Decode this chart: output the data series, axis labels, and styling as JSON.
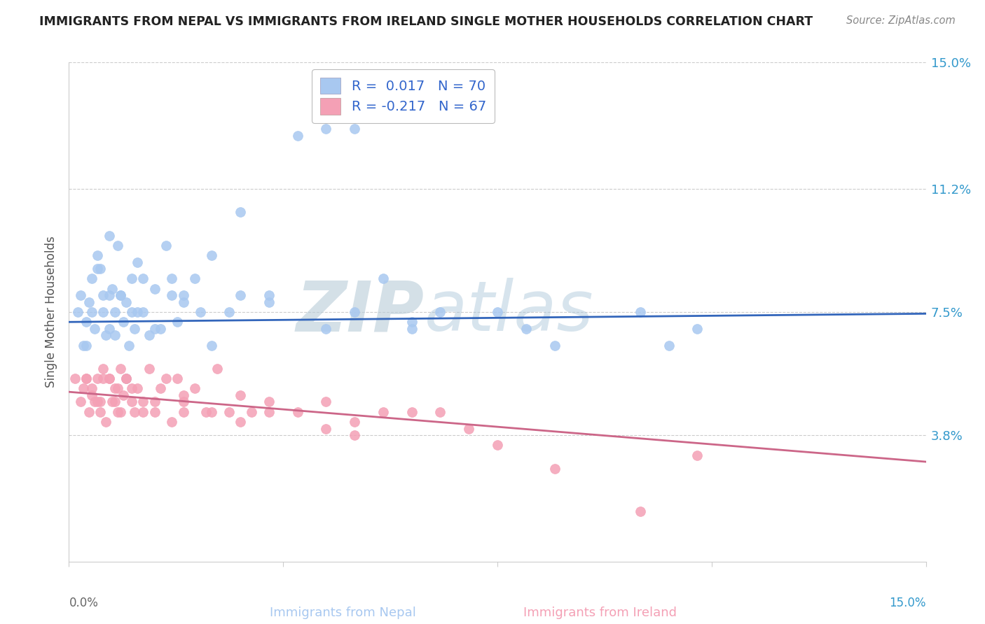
{
  "title": "IMMIGRANTS FROM NEPAL VS IMMIGRANTS FROM IRELAND SINGLE MOTHER HOUSEHOLDS CORRELATION CHART",
  "source": "Source: ZipAtlas.com",
  "ylabel": "Single Mother Households",
  "yticks": [
    0.0,
    3.8,
    7.5,
    11.2,
    15.0
  ],
  "ytick_labels": [
    "",
    "3.8%",
    "7.5%",
    "11.2%",
    "15.0%"
  ],
  "xlim": [
    0.0,
    15.0
  ],
  "ylim": [
    0.0,
    15.0
  ],
  "nepal_R": 0.017,
  "nepal_N": 70,
  "ireland_R": -0.217,
  "ireland_N": 67,
  "nepal_color": "#a8c8f0",
  "ireland_color": "#f4a0b5",
  "nepal_line_color": "#3366bb",
  "ireland_line_color": "#cc6688",
  "nepal_line_start_y": 7.2,
  "nepal_line_end_y": 7.45,
  "ireland_line_start_y": 5.1,
  "ireland_line_end_y": 3.0,
  "title_color": "#222222",
  "source_color": "#888888",
  "watermark_zip": "ZIP",
  "watermark_atlas": "atlas",
  "watermark_color": "#c8d8e8",
  "legend_text_color": "#3366cc",
  "nepal_scatter_x": [
    0.15,
    0.2,
    0.25,
    0.3,
    0.35,
    0.4,
    0.45,
    0.5,
    0.55,
    0.6,
    0.65,
    0.7,
    0.75,
    0.8,
    0.85,
    0.9,
    0.95,
    1.0,
    1.05,
    1.1,
    1.15,
    1.2,
    1.3,
    1.4,
    1.5,
    1.6,
    1.7,
    1.8,
    1.9,
    2.0,
    2.2,
    2.5,
    2.8,
    3.0,
    3.5,
    4.0,
    4.5,
    5.0,
    5.5,
    6.0,
    6.5,
    7.0,
    8.0,
    10.0,
    11.0,
    0.3,
    0.5,
    0.7,
    0.9,
    1.1,
    1.3,
    1.5,
    2.0,
    2.5,
    3.0,
    1.0,
    0.6,
    0.8,
    4.5,
    5.0,
    6.0,
    7.5,
    8.5,
    10.5,
    0.4,
    0.7,
    1.2,
    1.8,
    2.3,
    3.5
  ],
  "nepal_scatter_y": [
    7.5,
    8.0,
    6.5,
    7.2,
    7.8,
    8.5,
    7.0,
    9.2,
    8.8,
    7.5,
    6.8,
    9.8,
    8.2,
    7.5,
    9.5,
    8.0,
    7.2,
    7.8,
    6.5,
    8.5,
    7.0,
    9.0,
    7.5,
    6.8,
    8.2,
    7.0,
    9.5,
    8.5,
    7.2,
    8.0,
    8.5,
    9.2,
    7.5,
    10.5,
    7.8,
    12.8,
    13.0,
    7.5,
    8.5,
    7.2,
    7.5,
    13.8,
    7.0,
    7.5,
    7.0,
    6.5,
    8.8,
    7.0,
    8.0,
    7.5,
    8.5,
    7.0,
    7.8,
    6.5,
    8.0,
    5.5,
    8.0,
    6.8,
    7.0,
    13.0,
    7.0,
    7.5,
    6.5,
    6.5,
    7.5,
    8.0,
    7.5,
    8.0,
    7.5,
    8.0
  ],
  "ireland_scatter_x": [
    0.1,
    0.2,
    0.3,
    0.35,
    0.4,
    0.45,
    0.5,
    0.55,
    0.6,
    0.65,
    0.7,
    0.75,
    0.8,
    0.85,
    0.9,
    0.95,
    1.0,
    1.1,
    1.2,
    1.3,
    1.4,
    1.5,
    1.6,
    1.7,
    1.8,
    1.9,
    2.0,
    2.2,
    2.4,
    2.6,
    2.8,
    3.0,
    3.2,
    3.5,
    4.0,
    4.5,
    5.0,
    5.5,
    6.0,
    6.5,
    7.0,
    8.5,
    0.3,
    0.5,
    0.7,
    0.9,
    1.1,
    1.5,
    2.0,
    2.5,
    3.5,
    4.5,
    0.4,
    0.6,
    0.8,
    1.0,
    1.3,
    2.0,
    3.0,
    5.0,
    7.5,
    10.0,
    11.0,
    0.25,
    0.55,
    0.85,
    1.15
  ],
  "ireland_scatter_y": [
    5.5,
    4.8,
    5.5,
    4.5,
    5.2,
    4.8,
    5.5,
    4.5,
    5.8,
    4.2,
    5.5,
    4.8,
    5.2,
    4.5,
    5.8,
    5.0,
    5.5,
    4.8,
    5.2,
    4.5,
    5.8,
    4.8,
    5.2,
    5.5,
    4.2,
    5.5,
    4.8,
    5.2,
    4.5,
    5.8,
    4.5,
    5.0,
    4.5,
    4.8,
    4.5,
    4.8,
    4.2,
    4.5,
    4.5,
    4.5,
    4.0,
    2.8,
    5.5,
    4.8,
    5.5,
    4.5,
    5.2,
    4.5,
    5.0,
    4.5,
    4.5,
    4.0,
    5.0,
    5.5,
    4.8,
    5.5,
    4.8,
    4.5,
    4.2,
    3.8,
    3.5,
    1.5,
    3.2,
    5.2,
    4.8,
    5.2,
    4.5
  ]
}
